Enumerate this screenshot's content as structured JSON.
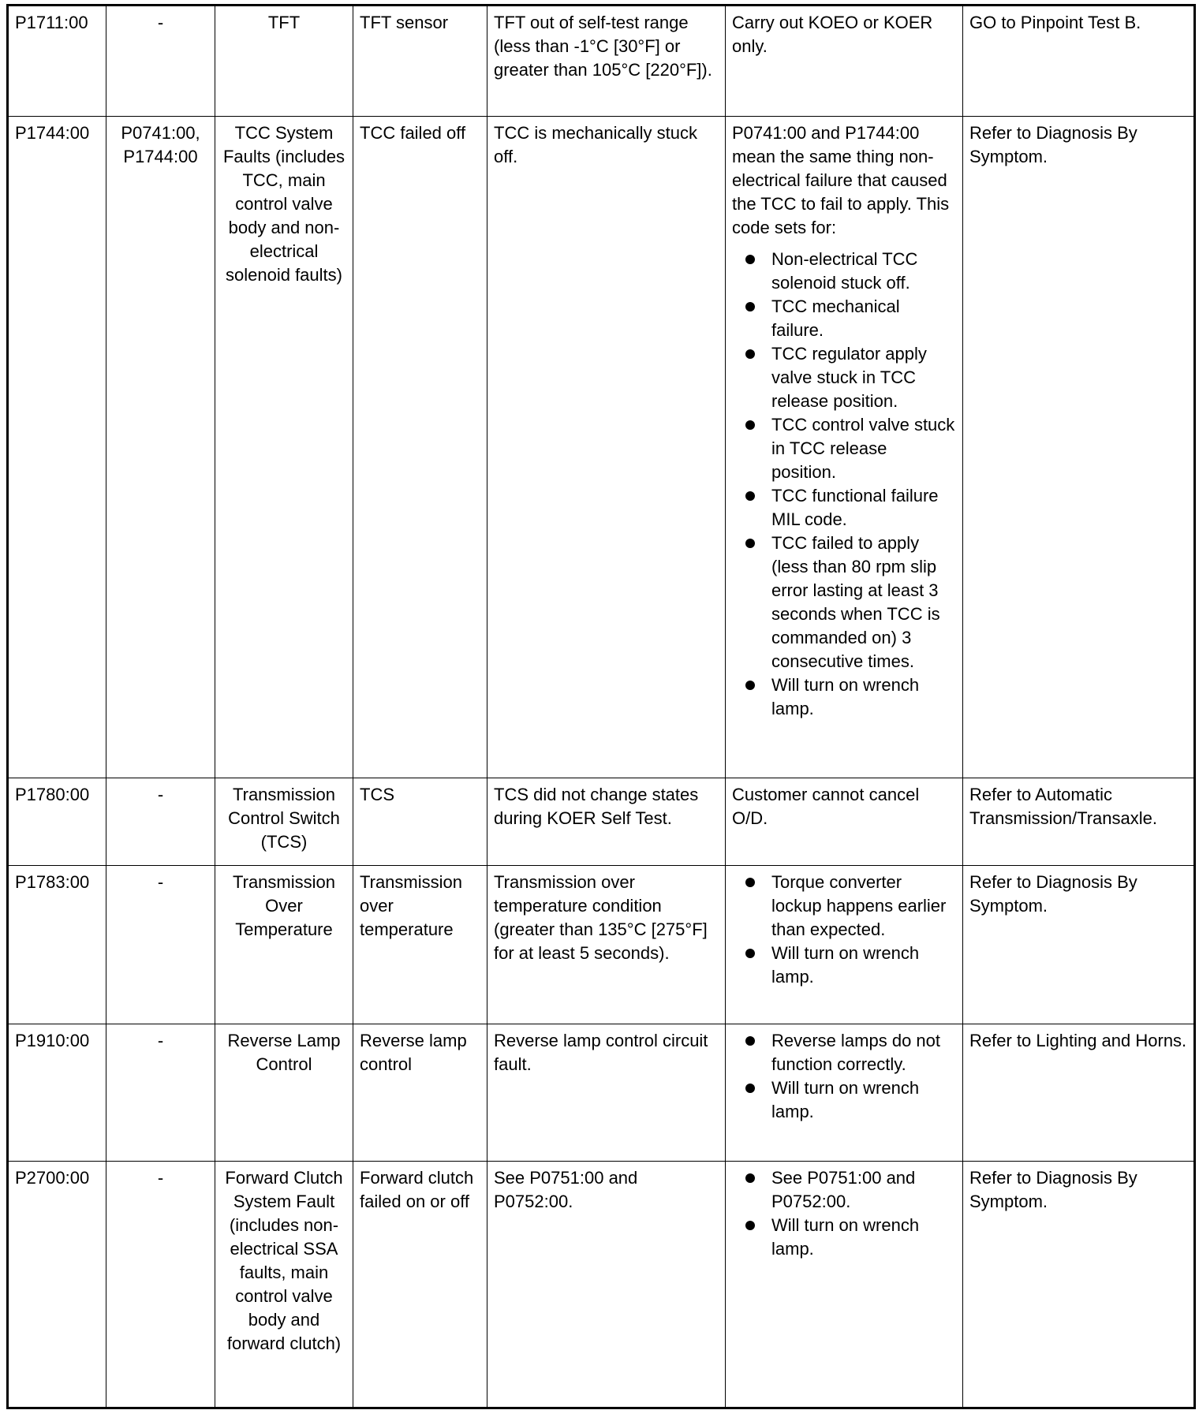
{
  "rows": [
    {
      "code": "P1711:00",
      "related": "-",
      "system": "TFT",
      "component": "TFT sensor",
      "condition": "TFT out of self-test range (less than -1°C [30°F] or greater than 105°C [220°F]).",
      "notes_text": "Carry out KOEO or KOER only.",
      "notes_bullets": [],
      "action": "GO to Pinpoint Test B."
    },
    {
      "code": "P1744:00",
      "related": "P0741:00, P1744:00",
      "system": "TCC System Faults (includes TCC, main control valve body and non-electrical solenoid faults)",
      "component": "TCC failed off",
      "condition": "TCC is mechanically stuck off.",
      "notes_text": "P0741:00 and P1744:00 mean the same thing non-electrical failure that caused the TCC to fail to apply. This code sets for:",
      "notes_bullets": [
        "Non-electrical TCC solenoid stuck off.",
        "TCC mechanical failure.",
        "TCC regulator apply valve stuck in TCC release position.",
        "TCC control valve stuck in TCC release position.",
        "TCC functional failure MIL code.",
        "TCC failed to apply (less than 80 rpm slip error lasting at least 3 seconds when TCC is commanded on) 3 consecutive times.",
        "Will turn on wrench lamp."
      ],
      "action": "Refer to Diagnosis By Symptom."
    },
    {
      "code": "P1780:00",
      "related": "-",
      "system": "Transmission Control Switch (TCS)",
      "component": "TCS",
      "condition": "TCS did not change states during KOER Self Test.",
      "notes_text": "Customer cannot cancel O/D.",
      "notes_bullets": [],
      "action": "Refer to Automatic Transmission/Transaxle."
    },
    {
      "code": "P1783:00",
      "related": "-",
      "system": "Transmission Over Temperature",
      "component": "Transmission over temperature",
      "condition": "Transmission over temperature condition (greater than 135°C [275°F] for at least 5 seconds).",
      "notes_text": "",
      "notes_bullets": [
        "Torque converter lockup happens earlier than expected.",
        "Will turn on wrench lamp."
      ],
      "action": "Refer to Diagnosis By Symptom."
    },
    {
      "code": "P1910:00",
      "related": "-",
      "system": "Reverse Lamp Control",
      "component": "Reverse lamp control",
      "condition": "Reverse lamp control circuit fault.",
      "notes_text": "",
      "notes_bullets": [
        "Reverse lamps do not function correctly.",
        "Will turn on wrench lamp."
      ],
      "action": "Refer to Lighting and Horns."
    },
    {
      "code": "P2700:00",
      "related": "-",
      "system": "Forward Clutch System Fault (includes non-electrical SSA faults, main control valve body and forward clutch)",
      "component": "Forward clutch failed on or off",
      "condition": "See P0751:00 and P0752:00.",
      "notes_text": "",
      "notes_bullets": [
        "See P0751:00 and P0752:00.",
        "Will turn on wrench lamp."
      ],
      "action": "Refer to Diagnosis By Symptom."
    }
  ]
}
